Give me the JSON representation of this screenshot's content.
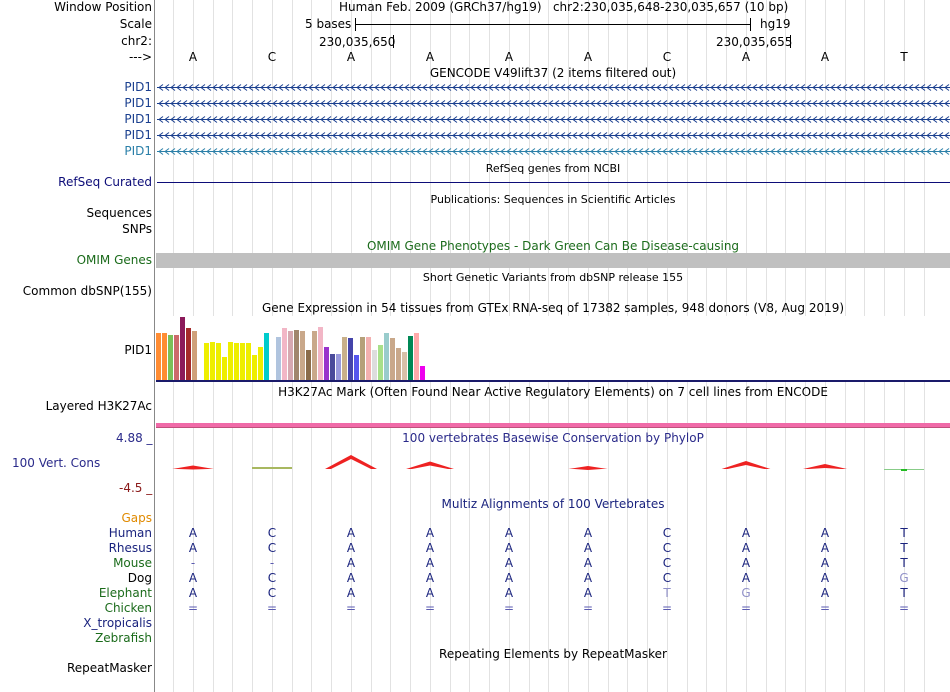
{
  "header": {
    "window_position_label": "Window Position",
    "position_text": "Human Feb. 2009 (GRCh37/hg19)   chr2:230,035,648-230,035,657 (10 bp)",
    "scale_label": "Scale",
    "scale_value": "5 bases",
    "scale_assembly": "hg19",
    "chrom_label": "chr2:",
    "coord_left": "230,035,650",
    "coord_right": "230,035,655",
    "arrow_label": "--->"
  },
  "sequence": [
    "A",
    "C",
    "A",
    "A",
    "A",
    "A",
    "C",
    "A",
    "A",
    "T"
  ],
  "gencode": {
    "title": "GENCODE V49lift37 (2 items filtered out)",
    "rows": [
      {
        "label": "PID1",
        "color": "#1a3f8f"
      },
      {
        "label": "PID1",
        "color": "#1a3f8f"
      },
      {
        "label": "PID1",
        "color": "#1a3f8f"
      },
      {
        "label": "PID1",
        "color": "#1a3f8f"
      },
      {
        "label": "PID1",
        "color": "#2a7fa8"
      }
    ]
  },
  "refseq": {
    "title": "RefSeq genes from NCBI",
    "label": "RefSeq Curated"
  },
  "publications": {
    "title": "Publications: Sequences in Scientific Articles",
    "label_sequences": "Sequences",
    "label_snps": "SNPs"
  },
  "omim": {
    "title": "OMIM Gene Phenotypes - Dark Green Can Be Disease-causing",
    "label": "OMIM Genes"
  },
  "dbsnp": {
    "title": "Short Genetic Variants from dbSNP release 155",
    "label": "Common dbSNP(155)"
  },
  "gtex": {
    "title": "Gene Expression in 54 tissues from GTEx RNA-seq of 17382 samples, 948 donors (V8, Aug 2019)",
    "label": "PID1",
    "bars": [
      {
        "v": 0.75,
        "c": "#ff8c33"
      },
      {
        "v": 0.75,
        "c": "#ff8c33"
      },
      {
        "v": 0.72,
        "c": "#7bbf58"
      },
      {
        "v": 0.72,
        "c": "#cc6a6a"
      },
      {
        "v": 1.0,
        "c": "#8b1a5a"
      },
      {
        "v": 0.82,
        "c": "#a52a2a"
      },
      {
        "v": 0.78,
        "c": "#cfa07a"
      },
      {
        "v": 0.0,
        "c": "#ffffff"
      },
      {
        "v": 0.58,
        "c": "#eeee00"
      },
      {
        "v": 0.6,
        "c": "#eeee00"
      },
      {
        "v": 0.58,
        "c": "#eeee00"
      },
      {
        "v": 0.36,
        "c": "#eeee00"
      },
      {
        "v": 0.6,
        "c": "#eeee00"
      },
      {
        "v": 0.58,
        "c": "#eeee00"
      },
      {
        "v": 0.58,
        "c": "#eeee00"
      },
      {
        "v": 0.58,
        "c": "#eeee00"
      },
      {
        "v": 0.4,
        "c": "#eeee00"
      },
      {
        "v": 0.52,
        "c": "#eeee00"
      },
      {
        "v": 0.74,
        "c": "#00cccc"
      },
      {
        "v": 0.0,
        "c": "#ffffff"
      },
      {
        "v": 0.68,
        "c": "#b0c4de"
      },
      {
        "v": 0.82,
        "c": "#f2b6c6"
      },
      {
        "v": 0.78,
        "c": "#d6a8b0"
      },
      {
        "v": 0.8,
        "c": "#a0866c"
      },
      {
        "v": 0.78,
        "c": "#c9a88a"
      },
      {
        "v": 0.47,
        "c": "#8b6c4a"
      },
      {
        "v": 0.78,
        "c": "#c9a88a"
      },
      {
        "v": 0.84,
        "c": "#f2b6c6"
      },
      {
        "v": 0.52,
        "c": "#9932cc"
      },
      {
        "v": 0.42,
        "c": "#4b4b9b"
      },
      {
        "v": 0.42,
        "c": "#9999dd"
      },
      {
        "v": 0.68,
        "c": "#c9b08a"
      },
      {
        "v": 0.66,
        "c": "#4444aa"
      },
      {
        "v": 0.4,
        "c": "#5555ee"
      },
      {
        "v": 0.68,
        "c": "#b5a07a"
      },
      {
        "v": 0.68,
        "c": "#f3b0b0"
      },
      {
        "v": 0.48,
        "c": "#dddddd"
      },
      {
        "v": 0.56,
        "c": "#a8e08a"
      },
      {
        "v": 0.74,
        "c": "#99cccc"
      },
      {
        "v": 0.66,
        "c": "#c9a88a"
      },
      {
        "v": 0.5,
        "c": "#c9a88a"
      },
      {
        "v": 0.44,
        "c": "#d8c0a8"
      },
      {
        "v": 0.7,
        "c": "#008855"
      },
      {
        "v": 0.74,
        "c": "#ffaaaa"
      },
      {
        "v": 0.22,
        "c": "#ee00ee"
      }
    ]
  },
  "h3k27ac": {
    "title": "H3K27Ac Mark (Often Found Near Active Regulatory Elements) on 7 cell lines from ENCODE",
    "label": "Layered H3K27Ac"
  },
  "phylop": {
    "title": "100 vertebrates Basewise Conservation by PhyloP",
    "label": "100 Vert. Cons",
    "max_label": "4.88 _",
    "min_label": "-4.5 _",
    "scores": [
      0.7,
      0.2,
      2.8,
      1.5,
      0.0,
      0.4,
      0.0,
      1.6,
      1.0,
      -0.3
    ]
  },
  "multiz": {
    "title": "Multiz Alignments of 100 Vertebrates",
    "gaps_label": "Gaps",
    "species": [
      {
        "name": "Human",
        "color": "#1a237e",
        "bases": [
          "A",
          "C",
          "A",
          "A",
          "A",
          "A",
          "C",
          "A",
          "A",
          "T"
        ]
      },
      {
        "name": "Rhesus",
        "color": "#1a237e",
        "bases": [
          "A",
          "C",
          "A",
          "A",
          "A",
          "A",
          "C",
          "A",
          "A",
          "T"
        ]
      },
      {
        "name": "Mouse",
        "color": "#1b6b1b",
        "bases": [
          "-",
          "-",
          "A",
          "A",
          "A",
          "A",
          "C",
          "A",
          "A",
          "T"
        ]
      },
      {
        "name": "Dog",
        "color": "#000000",
        "bases": [
          "A",
          "C",
          "A",
          "A",
          "A",
          "A",
          "C",
          "A",
          "A",
          "G"
        ]
      },
      {
        "name": "Elephant",
        "color": "#1b6b1b",
        "bases": [
          "A",
          "C",
          "A",
          "A",
          "A",
          "A",
          "T",
          "G",
          "A",
          "T"
        ]
      },
      {
        "name": "Chicken",
        "color": "#1b6b1b",
        "bases": [
          "=",
          "=",
          "=",
          "=",
          "=",
          "=",
          "=",
          "=",
          "=",
          "="
        ]
      },
      {
        "name": "X_tropicalis",
        "color": "#1a237e",
        "bases": [
          "",
          "",
          "",
          "",
          "",
          "",
          "",
          "",
          "",
          ""
        ]
      },
      {
        "name": "Zebrafish",
        "color": "#1b6b1b",
        "bases": [
          "",
          "",
          "",
          "",
          "",
          "",
          "",
          "",
          "",
          ""
        ]
      }
    ]
  },
  "repeatmasker": {
    "title": "Repeating Elements by RepeatMasker",
    "label": "RepeatMasker"
  },
  "colors": {
    "gencode_blue": "#1a3f8f",
    "refseq_navy": "#0c0c78",
    "omim_green": "#1b6b1b",
    "phylop_red": "#ee2222",
    "h3k27ac_pink": "#f06aa8"
  }
}
